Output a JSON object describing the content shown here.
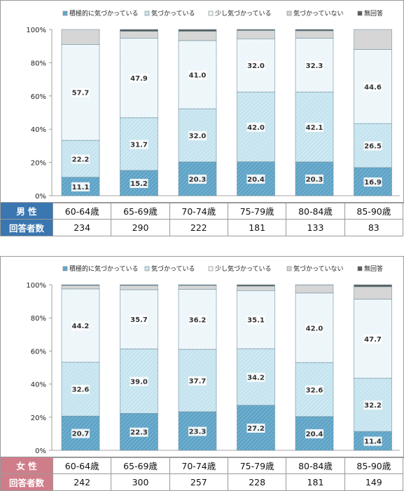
{
  "chart_data": [
    {
      "type": "bar",
      "stacked": true,
      "categories": [
        "60-64歳",
        "65-69歳",
        "70-74歳",
        "75-79歳",
        "80-84歳",
        "85-90歳"
      ],
      "yticks": [
        "0%",
        "20%",
        "40%",
        "60%",
        "80%",
        "100%"
      ],
      "ylim": [
        0,
        100
      ],
      "legend_position": "top",
      "series": [
        {
          "name": "積極的に気づかっている",
          "values": [
            11.1,
            15.2,
            20.3,
            20.4,
            20.3,
            16.9
          ]
        },
        {
          "name": "気づかっている",
          "values": [
            22.2,
            31.7,
            32.0,
            42.0,
            42.1,
            26.5
          ]
        },
        {
          "name": "少し気づかっている",
          "values": [
            57.7,
            47.9,
            41.0,
            32.0,
            32.3,
            44.6
          ]
        },
        {
          "name": "気づかっていない",
          "values": [
            9.0,
            4.1,
            5.6,
            5.0,
            4.5,
            12.0
          ]
        },
        {
          "name": "無回答",
          "values": [
            0.0,
            1.1,
            1.1,
            0.6,
            0.8,
            0.0
          ]
        }
      ],
      "label_series": [
        0,
        1,
        2
      ],
      "table": {
        "row_header": "男 性",
        "count_header": "回答者数",
        "counts": [
          "234",
          "290",
          "222",
          "181",
          "133",
          "83"
        ]
      }
    },
    {
      "type": "bar",
      "stacked": true,
      "categories": [
        "60-64歳",
        "65-69歳",
        "70-74歳",
        "75-79歳",
        "80-84歳",
        "85-90歳"
      ],
      "yticks": [
        "0%",
        "20%",
        "40%",
        "60%",
        "80%",
        "100%"
      ],
      "ylim": [
        0,
        100
      ],
      "legend_position": "top",
      "series": [
        {
          "name": "積極的に気づかっている",
          "values": [
            20.7,
            22.3,
            23.3,
            27.2,
            20.4,
            11.4
          ]
        },
        {
          "name": "気づかっている",
          "values": [
            32.6,
            39.0,
            37.7,
            34.2,
            32.6,
            32.2
          ]
        },
        {
          "name": "少し気づかっている",
          "values": [
            44.2,
            35.7,
            36.2,
            35.1,
            42.0,
            47.7
          ]
        },
        {
          "name": "気づかっていない",
          "values": [
            2.1,
            2.6,
            2.4,
            2.7,
            4.9,
            7.5
          ]
        },
        {
          "name": "無回答",
          "values": [
            0.4,
            0.4,
            0.4,
            0.8,
            0.1,
            1.2
          ]
        }
      ],
      "label_series": [
        0,
        1,
        2
      ],
      "table": {
        "row_header": "女 性",
        "count_header": "回答者数",
        "counts": [
          "242",
          "300",
          "257",
          "228",
          "181",
          "149"
        ]
      }
    }
  ],
  "colors": {
    "series": [
      "#5ea3c6",
      "#bfe0ec",
      "#eef7fb",
      "#d6d6d6",
      "#5a5a5a"
    ],
    "male_header": "#3a76b0",
    "female_header": "#d07d8a"
  }
}
